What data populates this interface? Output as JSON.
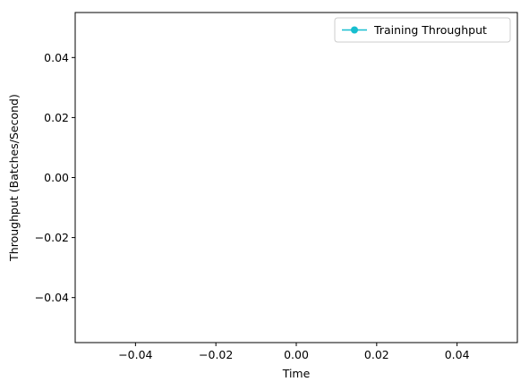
{
  "chart_data": {
    "type": "line",
    "title": "",
    "xlabel": "Time",
    "ylabel": "Throughput (Batches/Second)",
    "xlim": [
      -0.055,
      0.055
    ],
    "ylim": [
      -0.055,
      0.055
    ],
    "x_ticks": [
      -0.04,
      -0.02,
      0.0,
      0.02,
      0.04
    ],
    "x_tick_labels": [
      "−0.04",
      "−0.02",
      "0.00",
      "0.02",
      "0.04"
    ],
    "y_ticks": [
      -0.04,
      -0.02,
      0.0,
      0.02,
      0.04
    ],
    "y_tick_labels": [
      "−0.04",
      "−0.02",
      "0.00",
      "0.02",
      "0.04"
    ],
    "grid": false,
    "legend_position": "top-right",
    "series": [
      {
        "name": "Training Throughput",
        "color": "#17becf",
        "marker": "circle",
        "x": [],
        "y": []
      }
    ]
  }
}
